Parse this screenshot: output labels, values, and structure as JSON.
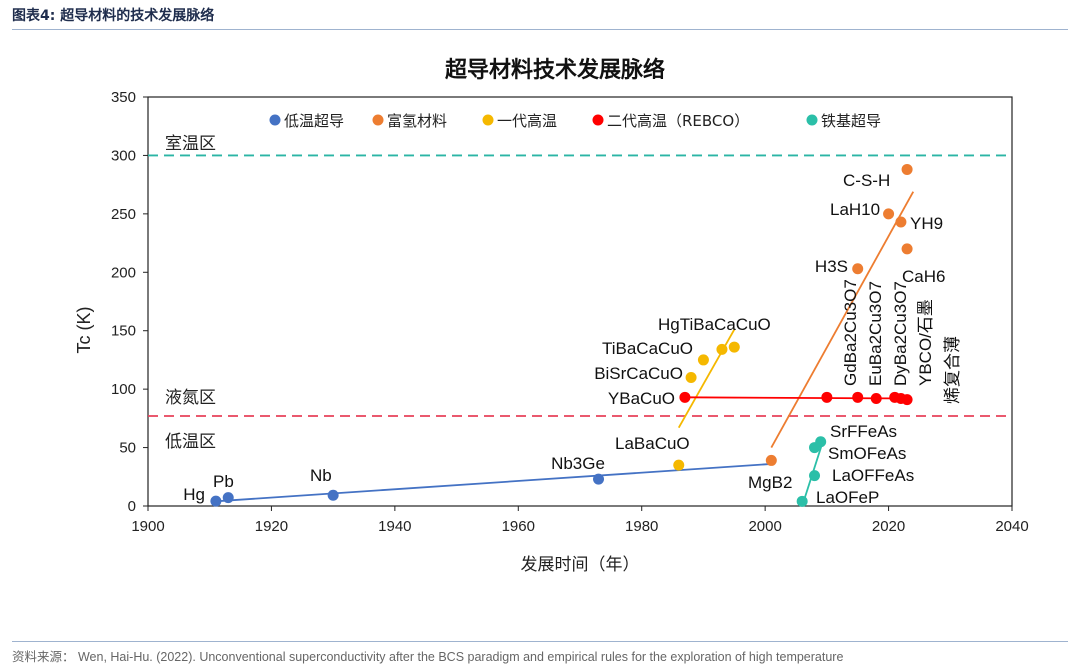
{
  "header": {
    "title": "图表4:   超导材料的技术发展脉络"
  },
  "footer": {
    "source": "资料来源： Wen, Hai-Hu. (2022). Unconventional superconductivity after the BCS paradigm and empirical rules for the exploration of high temperature"
  },
  "chart_data": {
    "type": "scatter",
    "title": "超导材料技术发展脉络",
    "xlabel": "发展时间（年）",
    "ylabel": "Tc (K)",
    "xlim": [
      1900,
      2040
    ],
    "ylim": [
      0,
      350
    ],
    "xticks": [
      1900,
      1920,
      1940,
      1960,
      1980,
      2000,
      2020,
      2040
    ],
    "yticks": [
      0,
      50,
      100,
      150,
      200,
      250,
      300,
      350
    ],
    "legend_position": "top",
    "reference_lines": [
      {
        "label": "室温区",
        "y": 300,
        "color": "#2bb5a5"
      },
      {
        "label": "液氮区",
        "y": 77,
        "color": "#e8425a"
      },
      {
        "label": "低温区",
        "y": null,
        "color": "#e8425a"
      }
    ],
    "series": [
      {
        "name": "低温超导",
        "color": "#4472c4",
        "points": [
          {
            "x": 1911,
            "y": 4.2,
            "label": "Hg"
          },
          {
            "x": 1913,
            "y": 7.2,
            "label": "Pb"
          },
          {
            "x": 1930,
            "y": 9.2,
            "label": "Nb"
          },
          {
            "x": 1973,
            "y": 23,
            "label": "Nb3Ge"
          }
        ],
        "trend": [
          [
            1911,
            4
          ],
          [
            2001,
            36
          ]
        ]
      },
      {
        "name": "富氢材料",
        "color": "#ed7d31",
        "points": [
          {
            "x": 2001,
            "y": 39,
            "label": "MgB2"
          },
          {
            "x": 2015,
            "y": 203,
            "label": "H3S"
          },
          {
            "x": 2020,
            "y": 250,
            "label": "LaH10"
          },
          {
            "x": 2022,
            "y": 243,
            "label": "YH9"
          },
          {
            "x": 2023,
            "y": 220,
            "label": "CaH6"
          },
          {
            "x": 2023,
            "y": 288,
            "label": "C-S-H"
          }
        ],
        "trend": [
          [
            2001,
            50
          ],
          [
            2024,
            269
          ]
        ]
      },
      {
        "name": "一代高温",
        "color": "#f5b800",
        "points": [
          {
            "x": 1986,
            "y": 35,
            "label": "LaBaCuO"
          },
          {
            "x": 1988,
            "y": 110,
            "label": "BiSrCaCuO"
          },
          {
            "x": 1990,
            "y": 125,
            "label": "TiBaCaCuO"
          },
          {
            "x": 1993,
            "y": 134,
            "label": "HgTiBaCaCuO"
          },
          {
            "x": 1995,
            "y": 136,
            "label": ""
          }
        ],
        "trend": [
          [
            1986,
            67
          ],
          [
            1995,
            151
          ]
        ]
      },
      {
        "name": "二代高温（REBCO）",
        "color": "#ff0000",
        "points": [
          {
            "x": 1987,
            "y": 93,
            "label": "YBaCuO"
          },
          {
            "x": 2010,
            "y": 93,
            "label": ""
          },
          {
            "x": 2015,
            "y": 93,
            "label": ""
          },
          {
            "x": 2018,
            "y": 92,
            "label": ""
          },
          {
            "x": 2021,
            "y": 93,
            "label": ""
          },
          {
            "x": 2022,
            "y": 92,
            "label": ""
          },
          {
            "x": 2023,
            "y": 91,
            "label": ""
          }
        ],
        "trend": [
          [
            1987,
            93
          ],
          [
            2023,
            92
          ]
        ]
      },
      {
        "name": "铁基超导",
        "color": "#2bbfa8",
        "points": [
          {
            "x": 2006,
            "y": 4,
            "label": "LaOFeP"
          },
          {
            "x": 2008,
            "y": 26,
            "label": "LaOFFeAs"
          },
          {
            "x": 2008,
            "y": 50,
            "label": "SmOFeAs"
          },
          {
            "x": 2009,
            "y": 55,
            "label": "SrFFeAs"
          }
        ],
        "trend": [
          [
            2006,
            0
          ],
          [
            2009.4,
            56
          ]
        ]
      }
    ],
    "annotations": [
      "GdBa2Cu3O7",
      "EuBa2Cu3O7",
      "DyBa2Cu3O7",
      "YBCO/石墨",
      "烯复合薄"
    ]
  }
}
